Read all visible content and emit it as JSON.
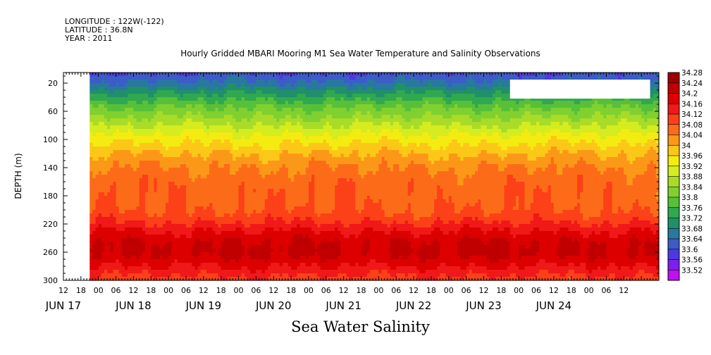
{
  "header": {
    "longitude": "LONGITUDE : 122W(-122)",
    "latitude": "LATITUDE : 36.8N",
    "year": "YEAR : 2011"
  },
  "chart_data": {
    "type": "heatmap",
    "title": "Hourly Gridded MBARI Mooring M1 Sea Water Temperature and Salinity Observations",
    "xlabel": "Sea Water Salinity",
    "ylabel": "DEPTH (m)",
    "x_start_hour": 12,
    "x_end_hour": 216,
    "x_start_label": "JUN 17 12:00",
    "hour_ticks": [
      "12",
      "18",
      "00",
      "06",
      "12",
      "18",
      "00",
      "06",
      "12",
      "18",
      "00",
      "06",
      "12",
      "18",
      "00",
      "06",
      "12",
      "18",
      "00",
      "06",
      "12",
      "18",
      "00",
      "06",
      "12",
      "18",
      "00",
      "06",
      "12",
      "18",
      "00",
      "06",
      "12"
    ],
    "date_labels": [
      {
        "label": "JUN 17",
        "hour": 12
      },
      {
        "label": "JUN 18",
        "hour": 36
      },
      {
        "label": "JUN 19",
        "hour": 60
      },
      {
        "label": "JUN 20",
        "hour": 84
      },
      {
        "label": "JUN 21",
        "hour": 108
      },
      {
        "label": "JUN 22",
        "hour": 132
      },
      {
        "label": "JUN 23",
        "hour": 156
      },
      {
        "label": "JUN 24",
        "hour": 180
      }
    ],
    "y_ticks": [
      20,
      60,
      100,
      140,
      180,
      220,
      260,
      300
    ],
    "ylim": [
      300,
      5
    ],
    "data_start_hour": 21,
    "missing_block": {
      "hour_start": 165,
      "hour_end": 213,
      "depth_top": 15,
      "depth_bottom": 42
    },
    "profile": {
      "depth": [
        5,
        15,
        25,
        35,
        45,
        55,
        65,
        80,
        95,
        110,
        125,
        140,
        155,
        170,
        185,
        200,
        215,
        230,
        245,
        260,
        270,
        280,
        290,
        300
      ],
      "salinity": [
        33.64,
        33.67,
        33.71,
        33.76,
        33.8,
        33.84,
        33.87,
        33.92,
        33.97,
        34.01,
        34.05,
        34.08,
        34.1,
        34.11,
        34.11,
        34.12,
        34.15,
        34.2,
        34.24,
        34.25,
        34.23,
        34.2,
        34.17,
        34.14
      ]
    },
    "colorbar": {
      "values": [
        "34.28",
        "34.24",
        "34.2",
        "34.16",
        "34.12",
        "34.08",
        "34.04",
        "34",
        "33.96",
        "33.92",
        "33.88",
        "33.84",
        "33.8",
        "33.76",
        "33.72",
        "33.68",
        "33.64",
        "33.6",
        "33.56",
        "33.52"
      ],
      "colors": [
        "#a00000",
        "#c00000",
        "#dc0000",
        "#f01818",
        "#fc4018",
        "#fc6c18",
        "#fc9818",
        "#fcc818",
        "#f4ec10",
        "#d4ec20",
        "#a8dc28",
        "#80d030",
        "#58c038",
        "#30a850",
        "#209068",
        "#2878a0",
        "#3c5cc8",
        "#5038e0",
        "#7c20ec",
        "#c010f0"
      ]
    },
    "legend_position": "right"
  }
}
